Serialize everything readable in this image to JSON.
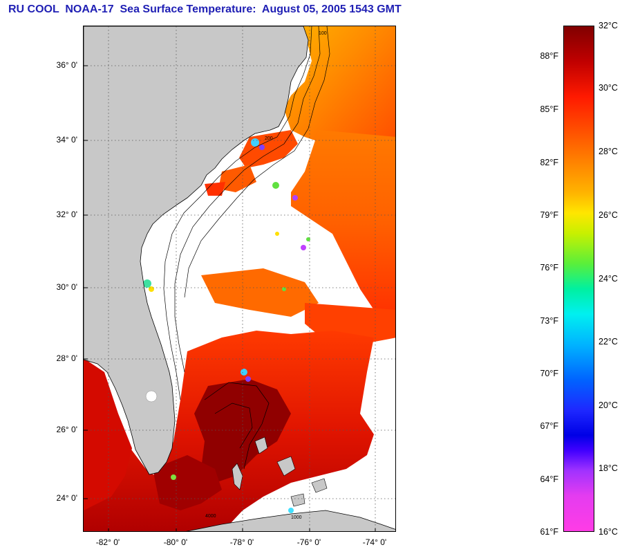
{
  "title": "RU COOL  NOAA-17  Sea Surface Temperature:  August 05, 2005 1543 GMT",
  "latitude_labels": [
    "36° 0'",
    "34° 0'",
    "32° 0'",
    "30° 0'",
    "28° 0'",
    "26° 0'",
    "24° 0'"
  ],
  "longitude_labels": [
    "-82° 0'",
    "-80° 0'",
    "-78° 0'",
    "-76° 0'",
    "-74° 0'"
  ],
  "colorbar": {
    "fahrenheit_labels": [
      "88°F",
      "85°F",
      "82°F",
      "79°F",
      "76°F",
      "73°F",
      "70°F",
      "67°F",
      "64°F",
      "61°F"
    ],
    "celsius_labels": [
      "32°C",
      "30°C",
      "28°C",
      "26°C",
      "24°C",
      "22°C",
      "20°C",
      "18°C",
      "16°C"
    ]
  },
  "colors": {
    "title": "#1f1fb4",
    "land": "#c8c8c8",
    "cloud_mask": "#ffffff",
    "warm_water": "#e01400",
    "hot_water": "#a00000"
  },
  "contour_labels": [
    "100",
    "200",
    "1000",
    "4000"
  ]
}
